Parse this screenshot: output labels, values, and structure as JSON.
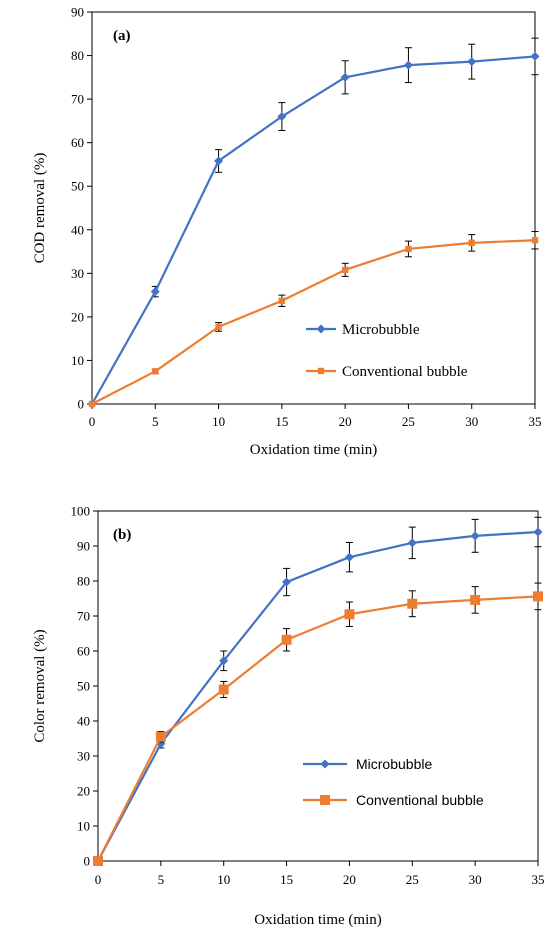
{
  "colors": {
    "microbubble": "#4472C4",
    "conventional": "#ED7D31"
  },
  "chart_data": [
    {
      "type": "line",
      "panel_label": "(a)",
      "xlabel": "Oxidation time (min)",
      "ylabel": "COD removal (%)",
      "x": [
        0,
        5,
        10,
        15,
        20,
        25,
        30,
        35
      ],
      "xlim": [
        0,
        35
      ],
      "ylim": [
        0,
        90
      ],
      "xticks": [
        0,
        5,
        10,
        15,
        20,
        25,
        30,
        35
      ],
      "yticks": [
        0,
        10,
        20,
        30,
        40,
        50,
        60,
        70,
        80,
        90
      ],
      "grid": false,
      "legend_position": "lower-right",
      "series": [
        {
          "name": "Microbubble",
          "marker": "diamond",
          "values": [
            0,
            25.8,
            55.8,
            66,
            75,
            77.8,
            78.6,
            79.8
          ],
          "errors": [
            0,
            1.2,
            2.6,
            3.2,
            3.8,
            4,
            4,
            4.2
          ]
        },
        {
          "name": "Conventional bubble",
          "marker": "square",
          "values": [
            0,
            7.5,
            17.7,
            23.7,
            30.8,
            35.6,
            37,
            37.6
          ],
          "errors": [
            0,
            0.5,
            1,
            1.3,
            1.5,
            1.8,
            1.9,
            2
          ]
        }
      ]
    },
    {
      "type": "line",
      "panel_label": "(b)",
      "xlabel": "Oxidation time (min)",
      "ylabel": "Color removal (%)",
      "x": [
        0,
        5,
        10,
        15,
        20,
        25,
        30,
        35
      ],
      "xlim": [
        0,
        35
      ],
      "ylim": [
        0,
        100
      ],
      "xticks": [
        0,
        5,
        10,
        15,
        20,
        25,
        30,
        35
      ],
      "yticks": [
        0,
        10,
        20,
        30,
        40,
        50,
        60,
        70,
        80,
        90,
        100
      ],
      "grid": false,
      "legend_position": "lower-right",
      "series": [
        {
          "name": "Microbubble",
          "marker": "diamond",
          "values": [
            0,
            33.5,
            57.2,
            79.7,
            86.8,
            90.9,
            92.9,
            94
          ],
          "errors": [
            0,
            1.2,
            2.8,
            3.9,
            4.2,
            4.5,
            4.7,
            4.2
          ]
        },
        {
          "name": "Conventional bubble",
          "marker": "square",
          "values": [
            0,
            35.5,
            49,
            63.2,
            70.5,
            73.5,
            74.6,
            75.6
          ],
          "errors": [
            0,
            1.5,
            2.3,
            3.2,
            3.5,
            3.7,
            3.8,
            3.8
          ]
        }
      ]
    }
  ]
}
